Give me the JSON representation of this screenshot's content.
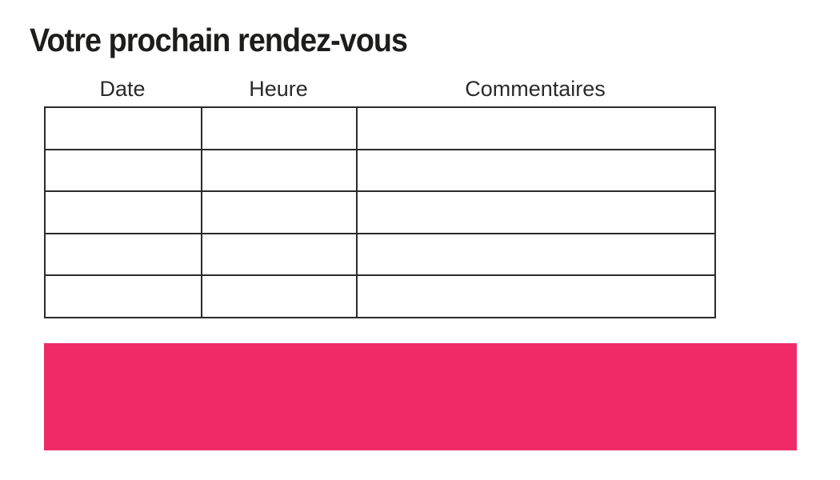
{
  "page": {
    "title": "Votre prochain rendez-vous"
  },
  "table": {
    "columns": [
      {
        "label": "Date"
      },
      {
        "label": "Heure"
      },
      {
        "label": "Commentaires"
      }
    ],
    "rows": [
      [
        "",
        "",
        ""
      ],
      [
        "",
        "",
        ""
      ],
      [
        "",
        "",
        ""
      ],
      [
        "",
        "",
        ""
      ],
      [
        "",
        "",
        ""
      ]
    ]
  },
  "banner": {
    "text": ""
  },
  "colors": {
    "banner_pink": "#ee2b67",
    "text_black": "#1d1d1b",
    "table_border": "#2a2a2a"
  }
}
